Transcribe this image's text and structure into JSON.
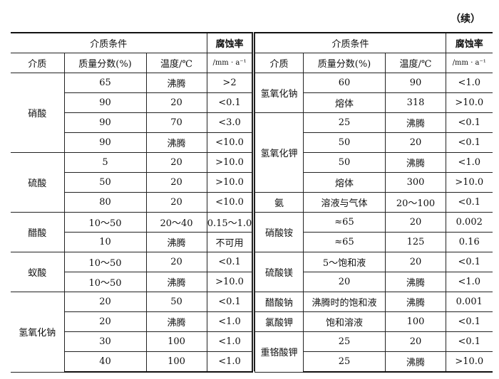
{
  "continued_label": "（续）",
  "header": {
    "conditions": "介质条件",
    "rate": "腐蚀率",
    "rate_unit": "/mm · a⁻¹",
    "medium": "介质",
    "fraction": "质量分数(%)",
    "temperature": "温度/℃"
  },
  "left_groups": [
    {
      "medium": "硝酸",
      "rows": [
        [
          "65",
          "沸腾",
          ">2"
        ],
        [
          "90",
          "20",
          "<0.1"
        ],
        [
          "90",
          "70",
          "<3.0"
        ],
        [
          "90",
          "沸腾",
          "<10.0"
        ]
      ]
    },
    {
      "medium": "硫酸",
      "rows": [
        [
          "5",
          "20",
          ">10.0"
        ],
        [
          "50",
          "20",
          ">10.0"
        ],
        [
          "80",
          "20",
          "<10.0"
        ]
      ]
    },
    {
      "medium": "醋酸",
      "rows": [
        [
          "10～50",
          "20～40",
          "0.15～1.0"
        ],
        [
          "10",
          "沸腾",
          "不可用"
        ]
      ]
    },
    {
      "medium": "蚁酸",
      "rows": [
        [
          "10～50",
          "20",
          "<0.1"
        ],
        [
          "10～50",
          "沸腾",
          ">10.0"
        ]
      ]
    },
    {
      "medium": "氢氧化钠",
      "rows": [
        [
          "20",
          "50",
          "<0.1"
        ],
        [
          "20",
          "沸腾",
          "<1.0"
        ],
        [
          "30",
          "100",
          "<1.0"
        ],
        [
          "40",
          "100",
          "<1.0"
        ]
      ]
    }
  ],
  "right_groups": [
    {
      "medium": "氢氧化钠",
      "rows": [
        [
          "60",
          "90",
          "<1.0"
        ],
        [
          "熔体",
          "318",
          ">10.0"
        ]
      ]
    },
    {
      "medium": "氢氧化钾",
      "rows": [
        [
          "25",
          "沸腾",
          "<0.1"
        ],
        [
          "50",
          "20",
          "<0.1"
        ],
        [
          "50",
          "沸腾",
          "<1.0"
        ],
        [
          "熔体",
          "300",
          ">10.0"
        ]
      ]
    },
    {
      "medium": "氨",
      "rows": [
        [
          "溶液与气体",
          "20～100",
          "<0.1"
        ]
      ]
    },
    {
      "medium": "硝酸铵",
      "rows": [
        [
          "≈65",
          "20",
          "0.002"
        ],
        [
          "≈65",
          "125",
          "0.16"
        ]
      ]
    },
    {
      "medium": "硫酸镁",
      "rows": [
        [
          "5～饱和液",
          "20",
          "<0.1"
        ],
        [
          "20",
          "沸腾",
          "<1.0"
        ]
      ]
    },
    {
      "medium": "醋酸钠",
      "rows": [
        [
          "沸腾时的饱和液",
          "沸腾",
          "0.001"
        ]
      ]
    },
    {
      "medium": "氯酸钾",
      "rows": [
        [
          "饱和溶液",
          "100",
          "<0.1"
        ]
      ]
    },
    {
      "medium": "重铬酸钾",
      "rows": [
        [
          "25",
          "20",
          "<0.1"
        ],
        [
          "25",
          "沸腾",
          ">10.0"
        ]
      ]
    }
  ]
}
